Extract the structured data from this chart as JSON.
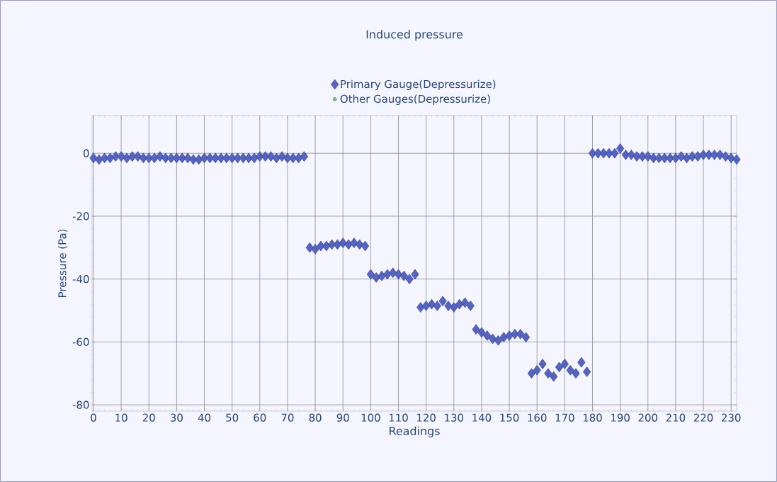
{
  "chart_data": {
    "type": "scatter",
    "title": "Induced pressure",
    "xlabel": "Readings",
    "ylabel": "Pressure (Pa)",
    "xlim": [
      -0.5,
      232
    ],
    "ylim": [
      -82,
      12
    ],
    "xticks": [
      0,
      10,
      20,
      30,
      40,
      50,
      60,
      70,
      80,
      90,
      100,
      110,
      120,
      130,
      140,
      150,
      160,
      170,
      180,
      190,
      200,
      210,
      220,
      230
    ],
    "yticks": [
      -80,
      -60,
      -40,
      -20,
      0
    ],
    "grid": true,
    "legend": "top",
    "series": [
      {
        "name": "Primary Gauge(Depressurize)",
        "color": "#5363c6",
        "marker": "diamond",
        "x": [
          0,
          2,
          4,
          6,
          8,
          10,
          12,
          14,
          16,
          18,
          20,
          22,
          24,
          26,
          28,
          30,
          32,
          34,
          36,
          38,
          40,
          42,
          44,
          46,
          48,
          50,
          52,
          54,
          56,
          58,
          60,
          62,
          64,
          66,
          68,
          70,
          72,
          74,
          76,
          78,
          80,
          82,
          84,
          86,
          88,
          90,
          92,
          94,
          96,
          98,
          100,
          102,
          104,
          106,
          108,
          110,
          112,
          114,
          116,
          118,
          120,
          122,
          124,
          126,
          128,
          130,
          132,
          134,
          136,
          138,
          140,
          142,
          144,
          146,
          148,
          150,
          152,
          154,
          156,
          158,
          160,
          162,
          164,
          166,
          168,
          170,
          172,
          174,
          176,
          178,
          180,
          182,
          184,
          186,
          188,
          190,
          192,
          194,
          196,
          198,
          200,
          202,
          204,
          206,
          208,
          210,
          212,
          214,
          216,
          218,
          220,
          222,
          224,
          226,
          228,
          230,
          232
        ],
        "values": [
          -1.5,
          -2,
          -1.5,
          -1.5,
          -1,
          -1,
          -1.5,
          -1,
          -1,
          -1.5,
          -1.5,
          -1.5,
          -1,
          -1.5,
          -1.5,
          -1.5,
          -1.5,
          -1.5,
          -2,
          -2,
          -1.5,
          -1.5,
          -1.5,
          -1.5,
          -1.5,
          -1.5,
          -1.5,
          -1.5,
          -1.5,
          -1.5,
          -1,
          -1,
          -1,
          -1.5,
          -1,
          -1.5,
          -1.5,
          -1.5,
          -1,
          -30,
          -30.5,
          -29.5,
          -29.5,
          -29,
          -29,
          -28.5,
          -29,
          -28.5,
          -29,
          -29.5,
          -38.5,
          -39.5,
          -39,
          -38.5,
          -38,
          -38.5,
          -39,
          -40,
          -38.5,
          -49,
          -48.5,
          -48,
          -48.5,
          -47,
          -48.5,
          -49,
          -48,
          -47.5,
          -48.5,
          -56,
          -57,
          -58,
          -59,
          -59.5,
          -58.5,
          -58,
          -57.5,
          -57.5,
          -58.5,
          -70,
          -69,
          -67,
          -70,
          -71,
          -68,
          -67,
          -69,
          -70,
          -66.5,
          -69.5,
          0,
          0,
          0,
          0,
          0,
          1.5,
          -0.5,
          -0.5,
          -1,
          -1,
          -1,
          -1.5,
          -1.5,
          -1.5,
          -1.5,
          -1.5,
          -1,
          -1.5,
          -1,
          -1,
          -0.5,
          -0.5,
          -0.5,
          -0.5,
          -1,
          -1.5,
          -2
        ]
      },
      {
        "name": "Other Gauges(Depressurize)",
        "color": "#7cc47c",
        "marker": "circle"
      }
    ]
  }
}
